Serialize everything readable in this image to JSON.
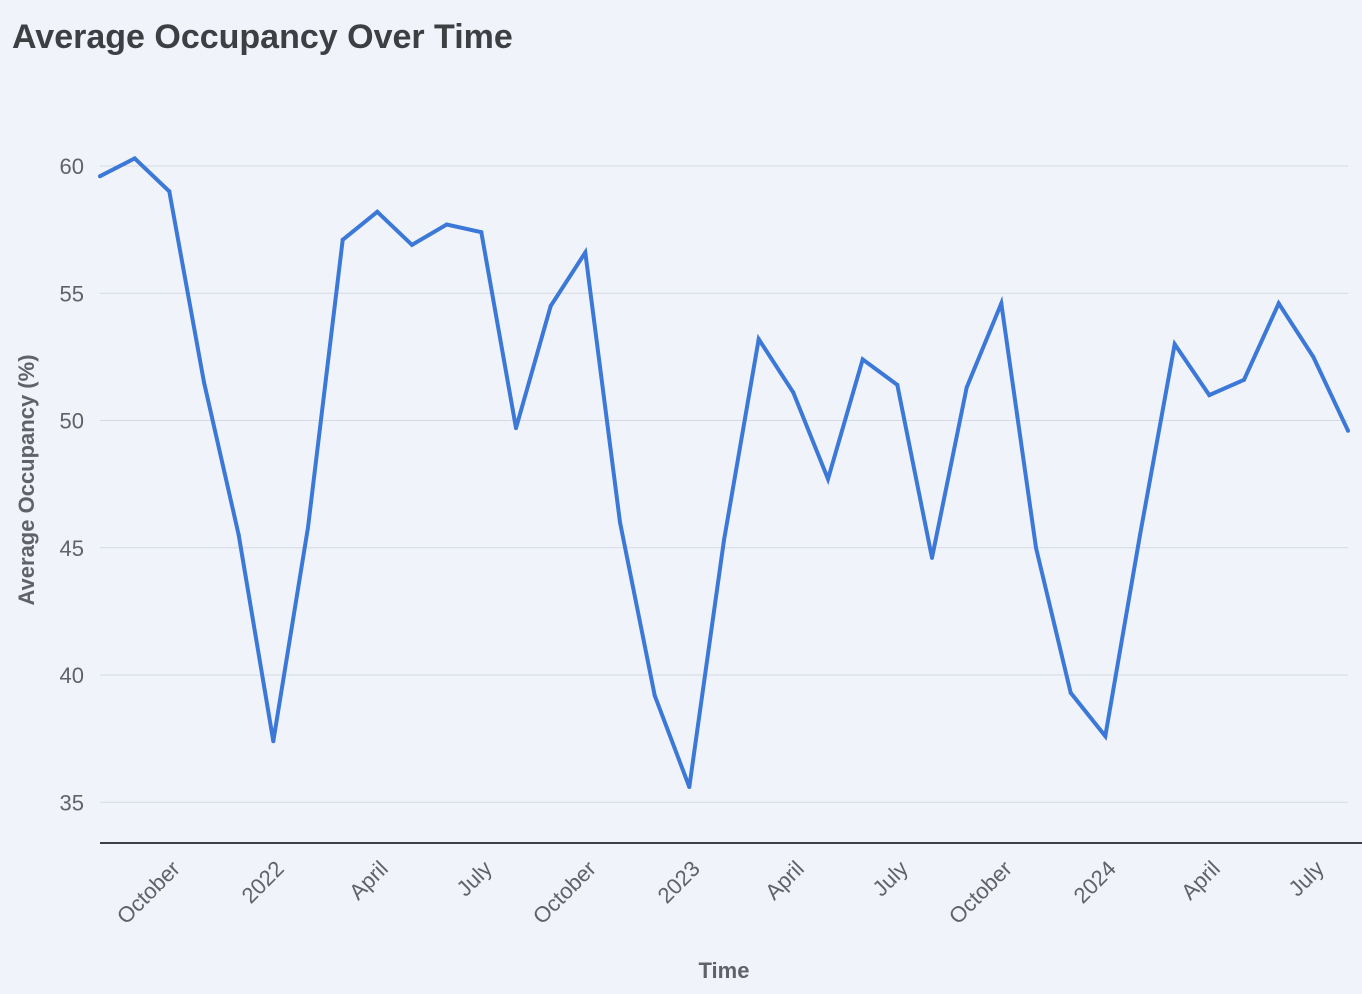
{
  "chart_data": {
    "type": "line",
    "title": "Average Occupancy Over Time",
    "xlabel": "Time",
    "ylabel": "Average Occupancy (%)",
    "ylim": [
      33.4,
      62.2
    ],
    "yticks": [
      35,
      40,
      45,
      50,
      55,
      60
    ],
    "grid": true,
    "line_color": "#3c78d8",
    "x_tick_labels": [
      {
        "label": "October",
        "date": "2021-10"
      },
      {
        "label": "2022",
        "date": "2022-01"
      },
      {
        "label": "April",
        "date": "2022-04"
      },
      {
        "label": "July",
        "date": "2022-07"
      },
      {
        "label": "October",
        "date": "2022-10"
      },
      {
        "label": "2023",
        "date": "2023-01"
      },
      {
        "label": "April",
        "date": "2023-04"
      },
      {
        "label": "July",
        "date": "2023-07"
      },
      {
        "label": "October",
        "date": "2023-10"
      },
      {
        "label": "2024",
        "date": "2024-01"
      },
      {
        "label": "April",
        "date": "2024-04"
      },
      {
        "label": "July",
        "date": "2024-07"
      }
    ],
    "x": [
      "2021-08",
      "2021-09",
      "2021-10",
      "2021-11",
      "2021-12",
      "2022-01",
      "2022-02",
      "2022-03",
      "2022-04",
      "2022-05",
      "2022-06",
      "2022-07",
      "2022-08",
      "2022-09",
      "2022-10",
      "2022-11",
      "2022-12",
      "2023-01",
      "2023-02",
      "2023-03",
      "2023-04",
      "2023-05",
      "2023-06",
      "2023-07",
      "2023-08",
      "2023-09",
      "2023-10",
      "2023-11",
      "2023-12",
      "2024-01",
      "2024-02",
      "2024-03",
      "2024-04",
      "2024-05",
      "2024-06",
      "2024-07",
      "2024-08"
    ],
    "series": [
      {
        "values": [
          59.6,
          60.3,
          59.0,
          51.5,
          45.5,
          37.4,
          45.8,
          57.1,
          58.2,
          56.9,
          57.7,
          57.4,
          49.7,
          54.5,
          56.6,
          46.0,
          39.2,
          35.6,
          45.3,
          53.2,
          51.1,
          47.7,
          52.4,
          51.4,
          44.6,
          51.3,
          54.6,
          45.0,
          39.3,
          37.6,
          45.5,
          53.0,
          51.0,
          51.6,
          54.6,
          52.5,
          49.6
        ]
      }
    ]
  }
}
